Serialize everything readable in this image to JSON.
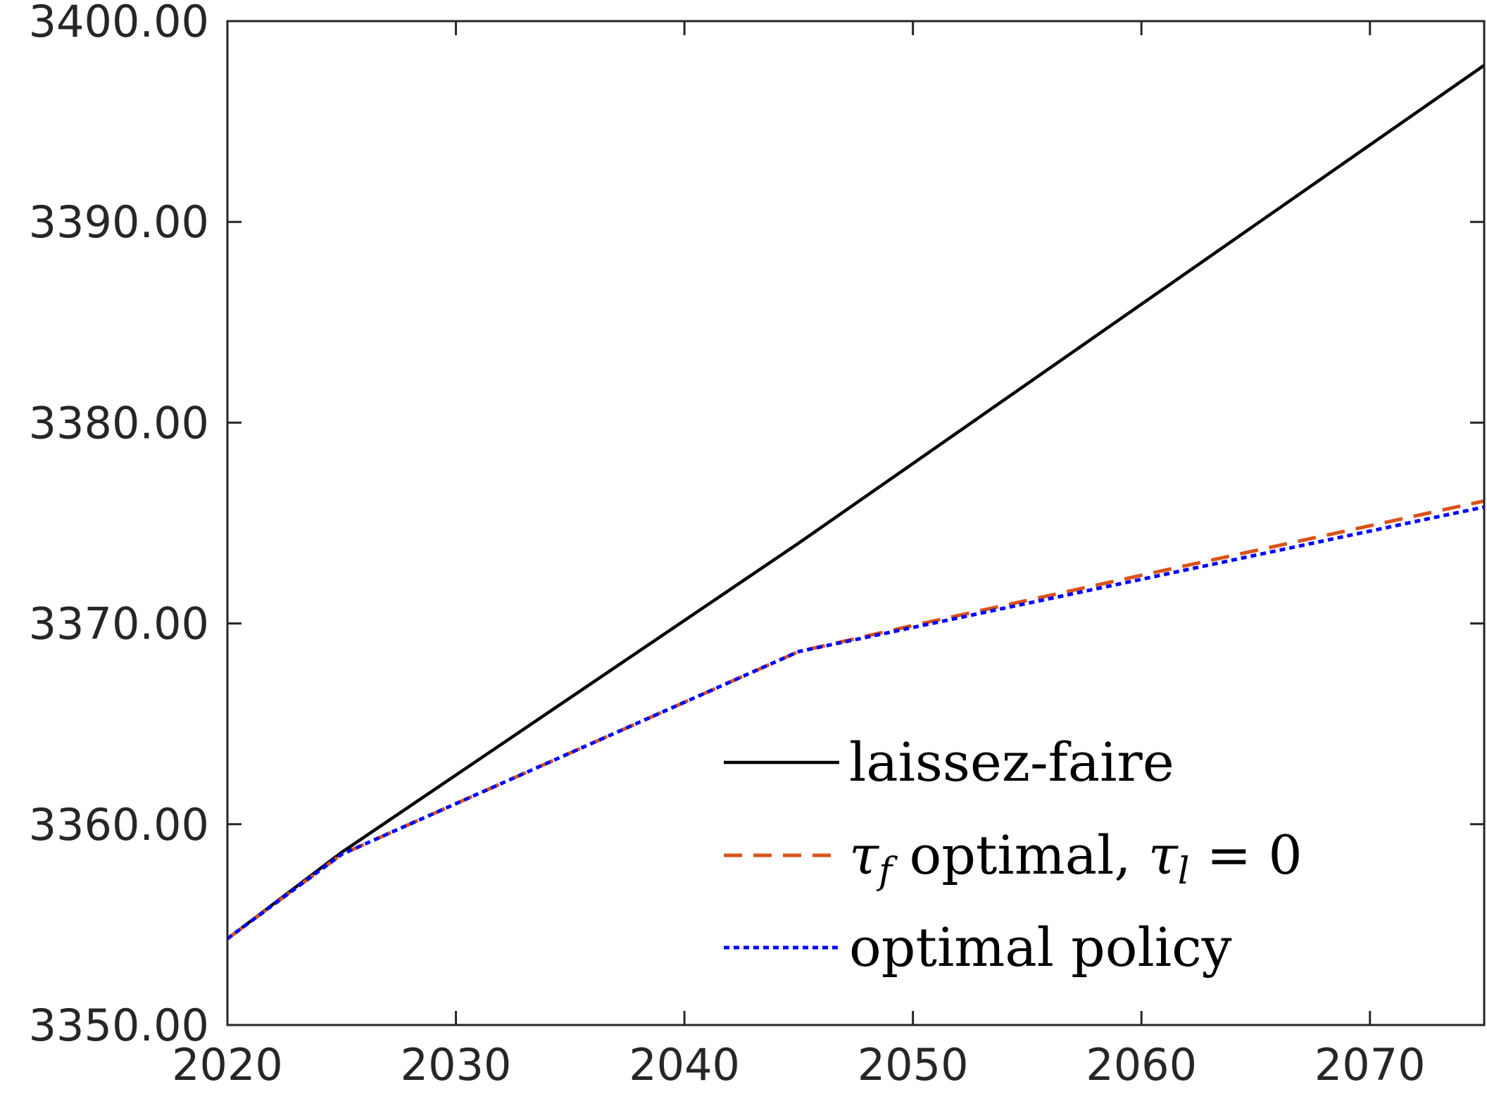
{
  "chart_data": {
    "type": "line",
    "title": "",
    "xlabel": "",
    "ylabel": "",
    "xlim": [
      2020,
      2075
    ],
    "ylim": [
      3350,
      3400
    ],
    "x_ticks": [
      2020,
      2030,
      2040,
      2050,
      2060,
      2070
    ],
    "x_tick_labels": [
      "2020",
      "2030",
      "2040",
      "2050",
      "2060",
      "2070"
    ],
    "y_ticks": [
      3350,
      3360,
      3370,
      3380,
      3390,
      3400
    ],
    "y_tick_labels": [
      "3350.00",
      "3360.00",
      "3370.00",
      "3380.00",
      "3390.00",
      "3400.00"
    ],
    "grid": false,
    "legend_position": "bottom-right",
    "series": [
      {
        "name": "laissez-faire",
        "color": "#000000",
        "style": "solid",
        "x": [
          2020,
          2025,
          2045,
          2075
        ],
        "y": [
          3354.3,
          3358.6,
          3374.0,
          3397.8
        ]
      },
      {
        "name_parts": [
          "τ",
          "f",
          " optimal, ",
          "τ",
          "l",
          " = 0"
        ],
        "color": "#D95319",
        "style": "dashed",
        "x": [
          2020,
          2025,
          2045,
          2050,
          2060,
          2075
        ],
        "y": [
          3354.3,
          3358.5,
          3368.6,
          3369.9,
          3372.4,
          3376.1
        ]
      },
      {
        "name": "optimal policy",
        "color": "#0000FF",
        "style": "dotted",
        "x": [
          2020,
          2025,
          2045,
          2050,
          2060,
          2075
        ],
        "y": [
          3354.3,
          3358.5,
          3368.6,
          3369.8,
          3372.2,
          3375.8
        ]
      }
    ]
  }
}
